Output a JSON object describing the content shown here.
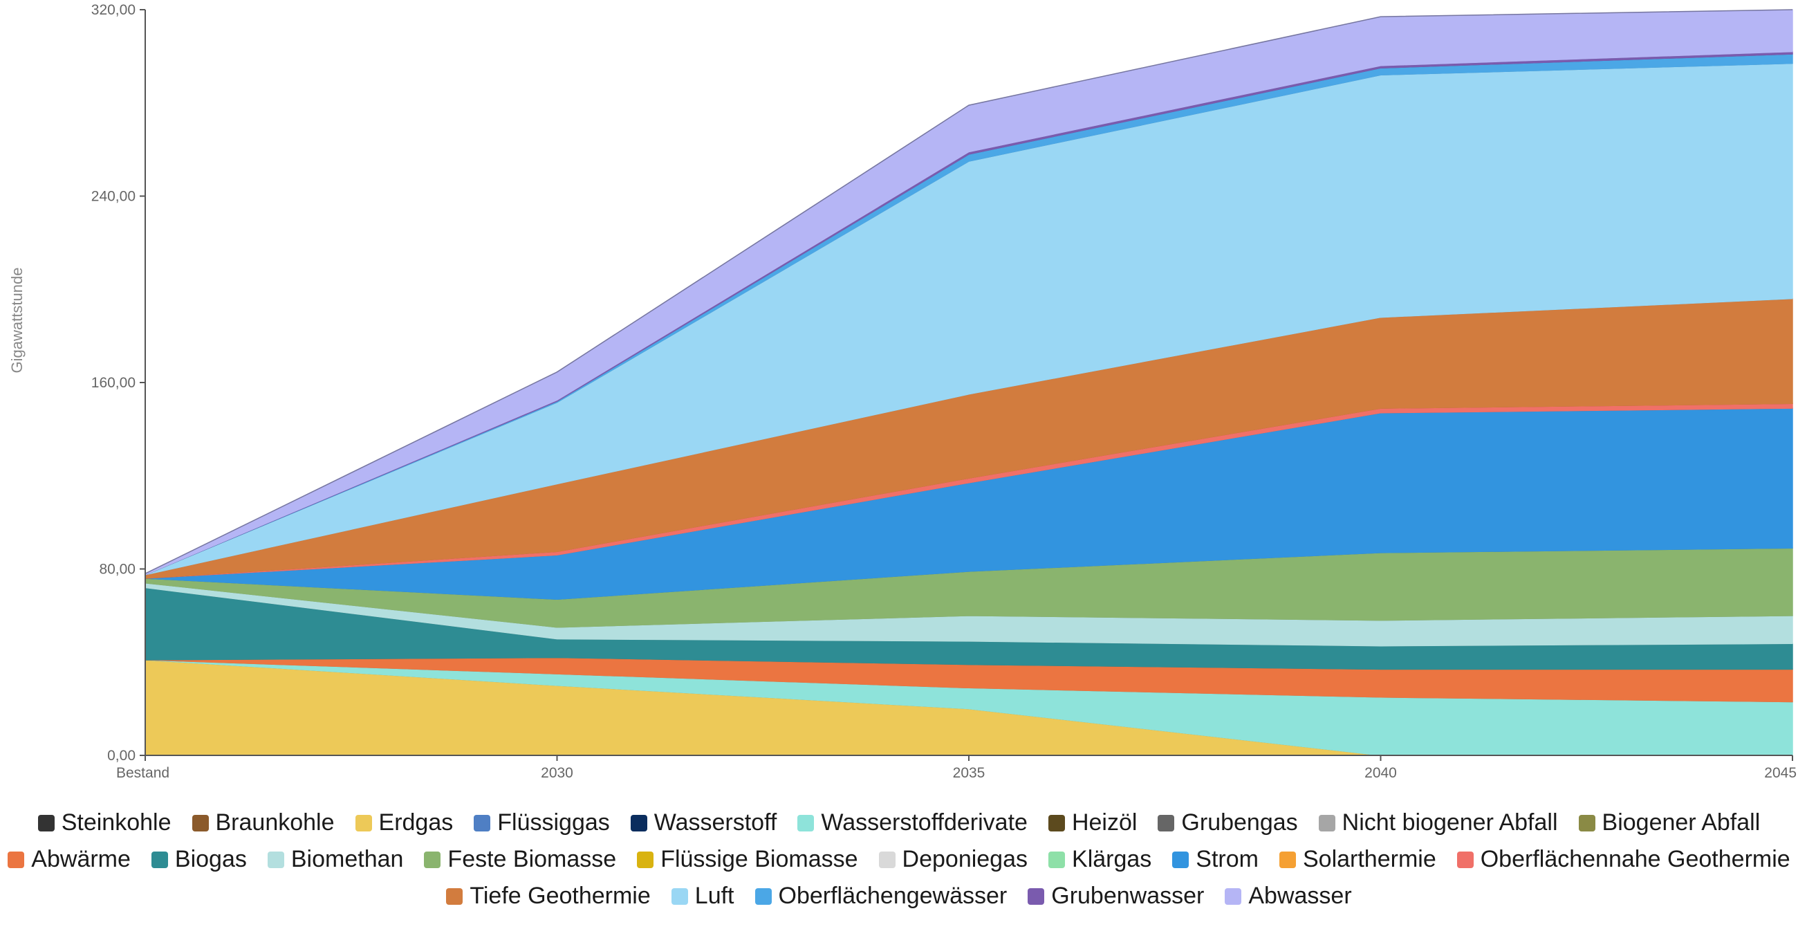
{
  "chart_data": {
    "type": "area",
    "stacked": true,
    "ylabel": "Gigawattstunde",
    "xlabel": "",
    "categories": [
      "Bestand",
      "2030",
      "2035",
      "2040",
      "2045"
    ],
    "yticks": [
      "0,00",
      "80,00",
      "160,00",
      "240,00",
      "320,00"
    ],
    "ylim": [
      0,
      320
    ],
    "grid": false,
    "legend_position": "bottom",
    "series": [
      {
        "name": "Steinkohle",
        "color": "#333333",
        "values": [
          0,
          0,
          0,
          0,
          0
        ]
      },
      {
        "name": "Braunkohle",
        "color": "#8B5A2B",
        "values": [
          0,
          0,
          0,
          0,
          0
        ]
      },
      {
        "name": "Erdgas",
        "color": "#EDC958",
        "values": [
          41,
          30,
          20,
          0,
          0
        ]
      },
      {
        "name": "Flüssiggas",
        "color": "#4F7FC4",
        "values": [
          0,
          0,
          0,
          0,
          0
        ]
      },
      {
        "name": "Wasserstoff",
        "color": "#0B2D5E",
        "values": [
          0,
          0,
          0,
          0,
          0
        ]
      },
      {
        "name": "Wasserstoffderivate",
        "color": "#8EE3DA",
        "values": [
          0,
          5,
          9,
          25,
          23
        ]
      },
      {
        "name": "Heizöl",
        "color": "#5C4A1E",
        "values": [
          0,
          0,
          0,
          0,
          0
        ]
      },
      {
        "name": "Grubengas",
        "color": "#666666",
        "values": [
          0,
          0,
          0,
          0,
          0
        ]
      },
      {
        "name": "Nicht biogener Abfall",
        "color": "#A6A6A6",
        "values": [
          0,
          0,
          0,
          0,
          0
        ]
      },
      {
        "name": "Biogener Abfall",
        "color": "#8A8A45",
        "values": [
          0,
          0,
          0,
          0,
          0
        ]
      },
      {
        "name": "Abwärme",
        "color": "#EB7541",
        "values": [
          0,
          7,
          10,
          12,
          14
        ]
      },
      {
        "name": "Biogas",
        "color": "#2E8C93",
        "values": [
          31,
          8,
          10,
          10,
          11
        ]
      },
      {
        "name": "Biomethan",
        "color": "#B3DFDF",
        "values": [
          2,
          5,
          11,
          11,
          12
        ]
      },
      {
        "name": "Feste Biomasse",
        "color": "#8AB46E",
        "values": [
          2,
          12,
          19,
          29,
          29
        ]
      },
      {
        "name": "Flüssige Biomasse",
        "color": "#D9B310",
        "values": [
          0,
          0,
          0,
          0,
          0
        ]
      },
      {
        "name": "Deponiegas",
        "color": "#D9D9D9",
        "values": [
          0,
          0,
          0,
          0,
          0
        ]
      },
      {
        "name": "Klärgas",
        "color": "#8EE0A8",
        "values": [
          0,
          0,
          0,
          0,
          0
        ]
      },
      {
        "name": "Strom",
        "color": "#3294DF",
        "values": [
          0,
          19,
          38,
          60,
          60
        ]
      },
      {
        "name": "Solarthermie",
        "color": "#F5A033",
        "values": [
          0,
          0,
          0,
          0,
          0
        ]
      },
      {
        "name": "Oberflächennahe Geothermie",
        "color": "#F07068",
        "values": [
          0,
          1.5,
          2,
          2,
          2
        ]
      },
      {
        "name": "Tiefe Geothermie",
        "color": "#D27C3E",
        "values": [
          1.5,
          29,
          36,
          39,
          45
        ]
      },
      {
        "name": "Luft",
        "color": "#9AD7F4",
        "values": [
          0,
          35,
          100,
          104,
          101
        ]
      },
      {
        "name": "Oberflächengewässer",
        "color": "#4BA7E6",
        "values": [
          0,
          0.5,
          3,
          3,
          4
        ]
      },
      {
        "name": "Grubenwasser",
        "color": "#7A5BAE",
        "values": [
          0,
          0.5,
          1,
          1,
          1
        ]
      },
      {
        "name": "Abwasser",
        "color": "#B5B5F5",
        "values": [
          0.5,
          12,
          20,
          21,
          18
        ]
      }
    ]
  }
}
